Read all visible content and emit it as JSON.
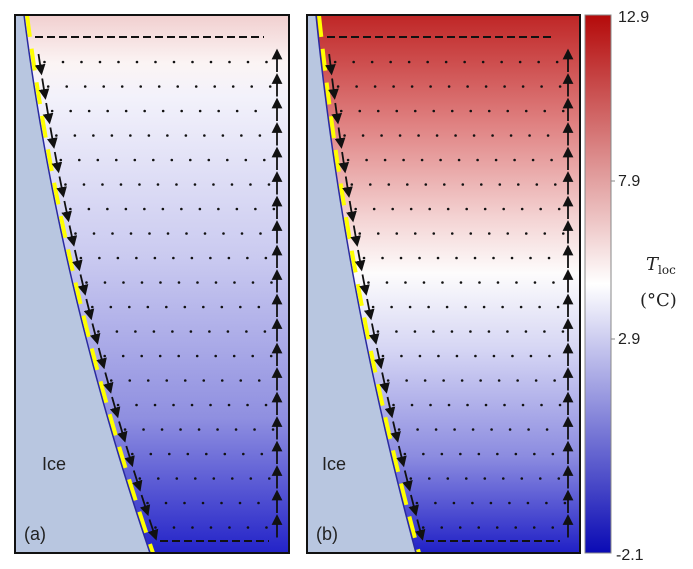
{
  "chart_data": {
    "type": "heatmap",
    "panels": [
      {
        "label": "(a)",
        "region_label": "Ice",
        "color_range_fraction": [
          0.0,
          0.68
        ]
      },
      {
        "label": "(b)",
        "region_label": "Ice",
        "color_range_fraction": [
          0.0,
          1.0
        ]
      }
    ],
    "colorbar": {
      "label": "T",
      "label_subscript": "loc",
      "unit": "(°C)",
      "min": -2.1,
      "max": 12.9,
      "ticks": [
        "12.9",
        "7.9",
        "2.9",
        "-2.1"
      ],
      "colors": {
        "low": "#0a0ab4",
        "mid": "#ffffff",
        "high": "#b40a0a"
      }
    },
    "overlays": {
      "ice_color": "#b8c6e0",
      "interface_dash_color": "#ffff00",
      "vectors": "velocity arrows"
    }
  }
}
